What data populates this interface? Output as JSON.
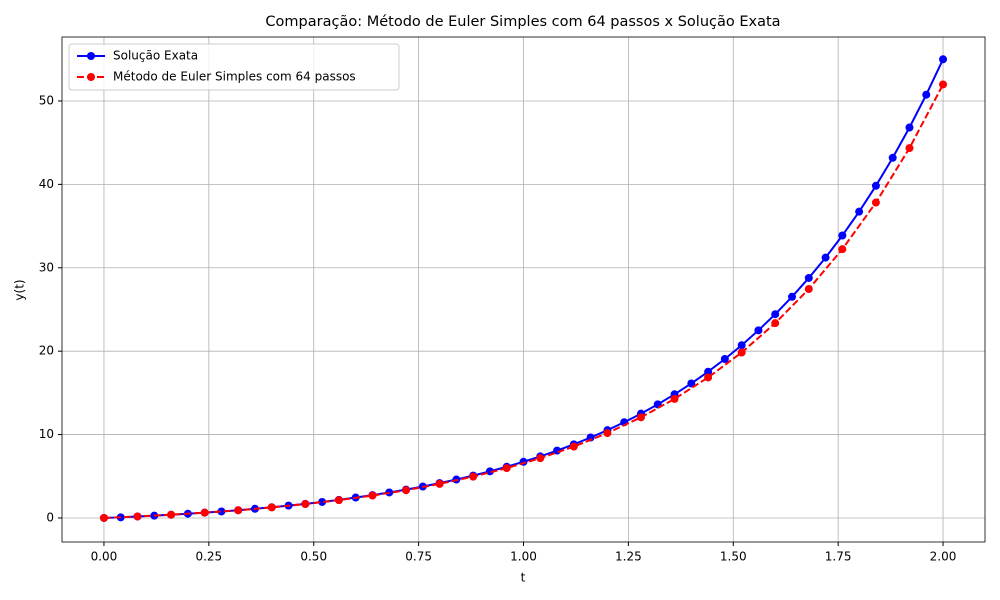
{
  "chart_data": {
    "type": "line",
    "title": "Comparação: Método de Euler Simples com 64 passos x Solução Exata",
    "xlabel": "t",
    "ylabel": "y(t)",
    "xlim": [
      -0.1,
      2.1
    ],
    "ylim": [
      -2.88,
      57.67
    ],
    "xticks": [
      {
        "value": 0,
        "label": "0.00"
      },
      {
        "value": 0.25,
        "label": "0.25"
      },
      {
        "value": 0.5,
        "label": "0.50"
      },
      {
        "value": 0.75,
        "label": "0.75"
      },
      {
        "value": 1,
        "label": "1.00"
      },
      {
        "value": 1.25,
        "label": "1.25"
      },
      {
        "value": 1.5,
        "label": "1.50"
      },
      {
        "value": 1.75,
        "label": "1.75"
      },
      {
        "value": 2,
        "label": "2.00"
      }
    ],
    "yticks": [
      0,
      10,
      20,
      30,
      40,
      50
    ],
    "grid": true,
    "legend": "upper-left",
    "series": [
      {
        "name": "Solução Exata",
        "color": "#0000ff",
        "linestyle": "solid",
        "x": [
          0,
          0.04,
          0.08,
          0.12,
          0.16,
          0.2,
          0.24,
          0.28,
          0.32,
          0.36,
          0.4,
          0.44,
          0.48,
          0.52,
          0.56,
          0.6,
          0.64,
          0.68,
          0.72,
          0.76,
          0.8,
          0.84,
          0.88,
          0.92,
          0.96,
          1,
          1.04,
          1.08,
          1.12,
          1.16,
          1.2,
          1.24,
          1.28,
          1.32,
          1.36,
          1.4,
          1.44,
          1.48,
          1.52,
          1.56,
          1.6,
          1.64,
          1.68,
          1.72,
          1.76,
          1.8,
          1.84,
          1.88,
          1.92,
          1.96,
          2
        ],
        "values": [
          0,
          0.08,
          0.18,
          0.28,
          0.39,
          0.51,
          0.64,
          0.78,
          0.93,
          1.1,
          1.28,
          1.48,
          1.69,
          1.92,
          2.17,
          2.45,
          2.74,
          3.06,
          3.4,
          3.77,
          4.18,
          4.61,
          5.08,
          5.59,
          6.14,
          6.74,
          7.38,
          8.08,
          8.83,
          9.65,
          10.53,
          11.48,
          12.51,
          13.62,
          14.83,
          16.13,
          17.54,
          19.06,
          20.71,
          22.5,
          24.43,
          26.52,
          28.78,
          31.22,
          33.87,
          36.73,
          39.83,
          43.19,
          46.82,
          50.75,
          55
        ]
      },
      {
        "name": "Método de Euler Simples com 64 passos",
        "color": "#ff0000",
        "linestyle": "dashed",
        "x": [
          0,
          0.08,
          0.16,
          0.24,
          0.32,
          0.4,
          0.48,
          0.56,
          0.64,
          0.72,
          0.8,
          0.88,
          0.96,
          1.04,
          1.12,
          1.2,
          1.28,
          1.36,
          1.44,
          1.52,
          1.6,
          1.68,
          1.76,
          1.84,
          1.92,
          2
        ],
        "values": [
          0,
          0.18,
          0.39,
          0.64,
          0.92,
          1.27,
          1.67,
          2.14,
          2.69,
          3.33,
          4.09,
          4.96,
          5.98,
          7.17,
          8.56,
          10.18,
          12.07,
          14.28,
          16.85,
          19.84,
          23.36,
          27.45,
          32.23,
          37.82,
          44.35,
          51.98
        ]
      }
    ]
  }
}
